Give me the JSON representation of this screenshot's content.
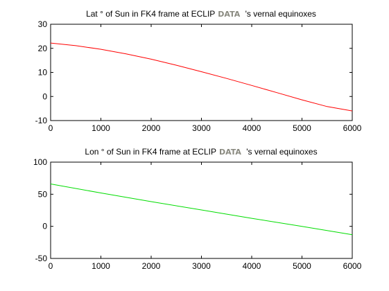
{
  "chart_data": [
    {
      "type": "line",
      "title_before": "Lat  ° of Sun in FK4 frame at ECLIP",
      "title_logo": "DATA",
      "title_after": " 's vernal equinoxes",
      "xlim": [
        0,
        6000
      ],
      "ylim": [
        -10,
        30
      ],
      "xticks": [
        0,
        1000,
        2000,
        3000,
        4000,
        5000,
        6000
      ],
      "yticks": [
        -10,
        0,
        10,
        20,
        30
      ],
      "grid": false,
      "series": [
        {
          "color": "#ff0000",
          "x": [
            0,
            500,
            1000,
            1500,
            2000,
            2500,
            3000,
            3500,
            4000,
            4500,
            5000,
            5500,
            6000
          ],
          "y": [
            22.2,
            21.1,
            19.6,
            17.7,
            15.5,
            13.0,
            10.3,
            7.5,
            4.6,
            1.6,
            -1.4,
            -4.2,
            -6.0
          ]
        }
      ]
    },
    {
      "type": "line",
      "title_before": "Lon ° of Sun in FK4 frame at ECLIP",
      "title_logo": "DATA",
      "title_after": " 's vernal equinoxes",
      "xlim": [
        0,
        6000
      ],
      "ylim": [
        -50,
        100
      ],
      "xticks": [
        0,
        1000,
        2000,
        3000,
        4000,
        5000,
        6000
      ],
      "yticks": [
        -50,
        0,
        50,
        100
      ],
      "grid": false,
      "series": [
        {
          "color": "#00dd00",
          "x": [
            0,
            1000,
            2000,
            3000,
            4000,
            5000,
            6000
          ],
          "y": [
            66,
            52,
            38.5,
            25.5,
            12.5,
            0,
            -13
          ]
        }
      ]
    }
  ]
}
